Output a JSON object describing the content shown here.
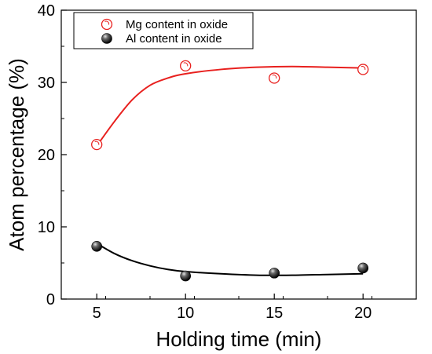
{
  "chart_data": {
    "type": "scatter",
    "xlabel": "Holding time (min)",
    "ylabel": "Atom percentage (%)",
    "xlim": [
      3,
      23
    ],
    "ylim": [
      0,
      40
    ],
    "xticks": [
      5,
      10,
      15,
      20
    ],
    "yticks": [
      0,
      10,
      20,
      30,
      40
    ],
    "grid": false,
    "legend_position": "top-left",
    "series": [
      {
        "name": "Mg content in oxide",
        "marker": "open-circle",
        "color": "#e8201e",
        "x": [
          5,
          10,
          15,
          20
        ],
        "y": [
          21.4,
          32.3,
          30.6,
          31.8
        ],
        "fit_curve": {
          "x": [
            5,
            6,
            7,
            8,
            9,
            10,
            12,
            14,
            16,
            18,
            20
          ],
          "y": [
            21.2,
            24.6,
            27.6,
            29.6,
            30.6,
            31.2,
            31.8,
            32.1,
            32.2,
            32.1,
            32.0
          ]
        }
      },
      {
        "name": "Al content in oxide",
        "marker": "filled-sphere",
        "color": "#111111",
        "x": [
          5,
          10,
          15,
          20
        ],
        "y": [
          7.3,
          3.2,
          3.6,
          4.3
        ],
        "fit_curve": {
          "x": [
            5,
            6,
            7,
            8,
            9,
            10,
            12,
            14,
            16,
            18,
            20
          ],
          "y": [
            7.7,
            6.3,
            5.3,
            4.6,
            4.1,
            3.8,
            3.5,
            3.3,
            3.3,
            3.4,
            3.5
          ]
        }
      }
    ]
  }
}
